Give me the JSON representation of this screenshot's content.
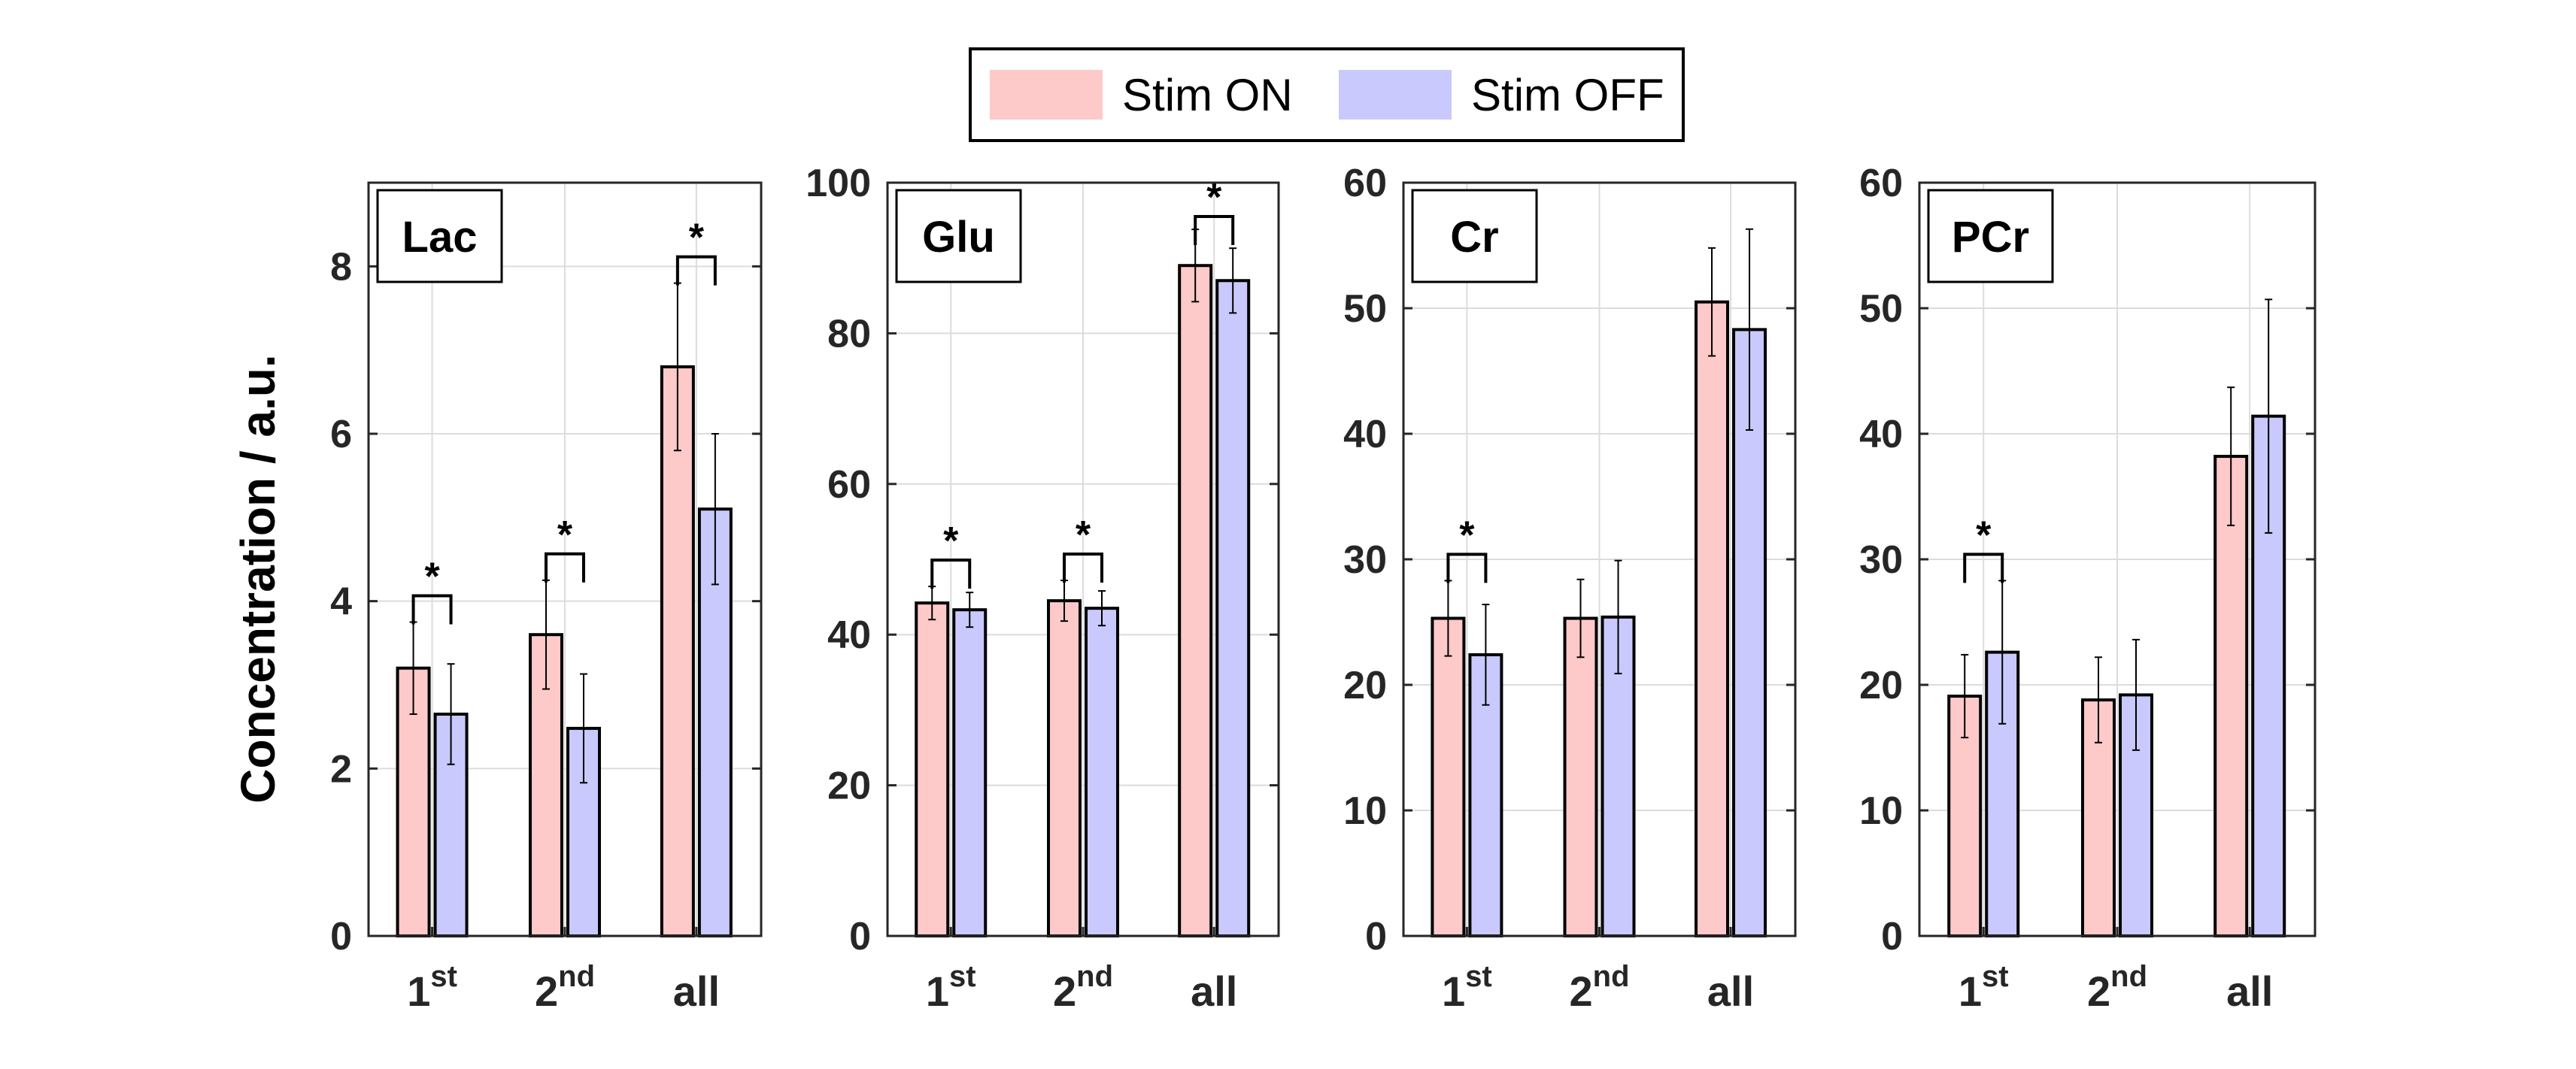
{
  "legend": {
    "items": [
      {
        "label": "Stim ON",
        "color": "#fdc9c9"
      },
      {
        "label": "Stim OFF",
        "color": "#c9c9fd"
      }
    ]
  },
  "ylabel": "Concentration / a.u.",
  "chart_data": [
    {
      "type": "bar",
      "title": "Lac",
      "categories": [
        {
          "base": "1",
          "sup": "st"
        },
        {
          "base": "2",
          "sup": "nd"
        },
        {
          "base": "all",
          "sup": ""
        }
      ],
      "series": [
        {
          "name": "Stim ON",
          "values": [
            3.2,
            3.6,
            6.8
          ],
          "errors": [
            0.55,
            0.65,
            1.0
          ]
        },
        {
          "name": "Stim OFF",
          "values": [
            2.65,
            2.48,
            5.1
          ],
          "errors": [
            0.6,
            0.65,
            0.9
          ]
        }
      ],
      "ylim": [
        0,
        9
      ],
      "yticks": [
        0,
        2,
        4,
        6,
        8
      ],
      "significant": [
        true,
        true,
        true
      ],
      "significance_symbol": "*",
      "grid": true
    },
    {
      "type": "bar",
      "title": "Glu",
      "categories": [
        {
          "base": "1",
          "sup": "st"
        },
        {
          "base": "2",
          "sup": "nd"
        },
        {
          "base": "all",
          "sup": ""
        }
      ],
      "series": [
        {
          "name": "Stim ON",
          "values": [
            44.2,
            44.5,
            89.0
          ],
          "errors": [
            2.2,
            2.7,
            4.8
          ]
        },
        {
          "name": "Stim OFF",
          "values": [
            43.3,
            43.5,
            87.0
          ],
          "errors": [
            2.3,
            2.3,
            4.3
          ]
        }
      ],
      "ylim": [
        0,
        100
      ],
      "yticks": [
        0,
        20,
        40,
        60,
        80,
        100
      ],
      "significant": [
        true,
        true,
        true
      ],
      "significance_symbol": "*",
      "grid": true
    },
    {
      "type": "bar",
      "title": "Cr",
      "categories": [
        {
          "base": "1",
          "sup": "st"
        },
        {
          "base": "2",
          "sup": "nd"
        },
        {
          "base": "all",
          "sup": ""
        }
      ],
      "series": [
        {
          "name": "Stim ON",
          "values": [
            25.3,
            25.3,
            50.5
          ],
          "errors": [
            3.0,
            3.1,
            4.3
          ]
        },
        {
          "name": "Stim OFF",
          "values": [
            22.4,
            25.4,
            48.3
          ],
          "errors": [
            4.0,
            4.5,
            8.0
          ]
        }
      ],
      "ylim": [
        0,
        60
      ],
      "yticks": [
        0,
        10,
        20,
        30,
        40,
        50,
        60
      ],
      "significant": [
        true,
        false,
        false
      ],
      "significance_symbol": "*",
      "grid": true
    },
    {
      "type": "bar",
      "title": "PCr",
      "categories": [
        {
          "base": "1",
          "sup": "st"
        },
        {
          "base": "2",
          "sup": "nd"
        },
        {
          "base": "all",
          "sup": ""
        }
      ],
      "series": [
        {
          "name": "Stim ON",
          "values": [
            19.1,
            18.8,
            38.2
          ],
          "errors": [
            3.3,
            3.4,
            5.5
          ]
        },
        {
          "name": "Stim OFF",
          "values": [
            22.6,
            19.2,
            41.4
          ],
          "errors": [
            5.7,
            4.4,
            9.3
          ]
        }
      ],
      "ylim": [
        0,
        60
      ],
      "yticks": [
        0,
        10,
        20,
        30,
        40,
        50,
        60
      ],
      "significant": [
        true,
        false,
        false
      ],
      "significance_symbol": "*",
      "grid": true
    }
  ]
}
